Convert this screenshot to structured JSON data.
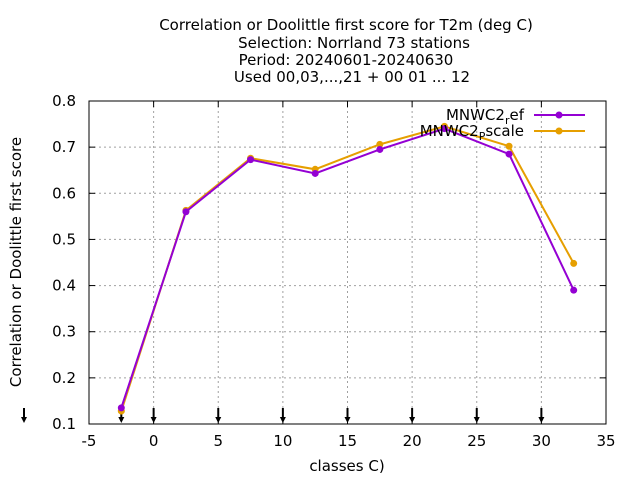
{
  "chart_data": {
    "type": "line",
    "title_lines": [
      "Correlation or Doolittle first score  for T2m (deg C)",
      "Selection: Norrland     73 stations",
      "Period: 20240601-20240630",
      "Used 00,03,...,21 + 00 01 ... 12"
    ],
    "xlabel": "classes C)",
    "ylabel": "Correlation or Doolittle first score",
    "xlim": [
      -5,
      35
    ],
    "ylim": [
      0.1,
      0.8
    ],
    "xticks": [
      -5,
      0,
      5,
      10,
      15,
      20,
      25,
      30,
      35
    ],
    "yticks": [
      0.1,
      0.2,
      0.3,
      0.4,
      0.5,
      0.6,
      0.7,
      0.8
    ],
    "xtick_labels": [
      "-5",
      "0",
      "5",
      "10",
      "15",
      "20",
      "25",
      "30",
      "35"
    ],
    "ytick_labels": [
      "0.1",
      "0.2",
      "0.3",
      "0.4",
      "0.5",
      "0.6",
      "0.7",
      "0.8"
    ],
    "grid": true,
    "legend_position": "top-right",
    "class_markers_x": [
      -2.5,
      0,
      2.5,
      7.5,
      12.5,
      17.5,
      22.5,
      27.5,
      32.5
    ],
    "series": [
      {
        "name_main": "MNWC2",
        "name_sub": "r",
        "name_tail": "ef",
        "color": "#9400d3",
        "x": [
          -2.5,
          2.5,
          7.5,
          12.5,
          17.5,
          22.5,
          27.5,
          32.5
        ],
        "y": [
          0.135,
          0.56,
          0.673,
          0.643,
          0.695,
          0.74,
          0.685,
          0.39
        ]
      },
      {
        "name_main": "MNWC2",
        "name_sub": "P",
        "name_tail": "scale",
        "color": "#e69f00",
        "x": [
          -2.5,
          2.5,
          7.5,
          12.5,
          17.5,
          22.5,
          27.5,
          32.5
        ],
        "y": [
          0.128,
          0.563,
          0.676,
          0.652,
          0.706,
          0.745,
          0.702,
          0.448
        ]
      }
    ]
  }
}
